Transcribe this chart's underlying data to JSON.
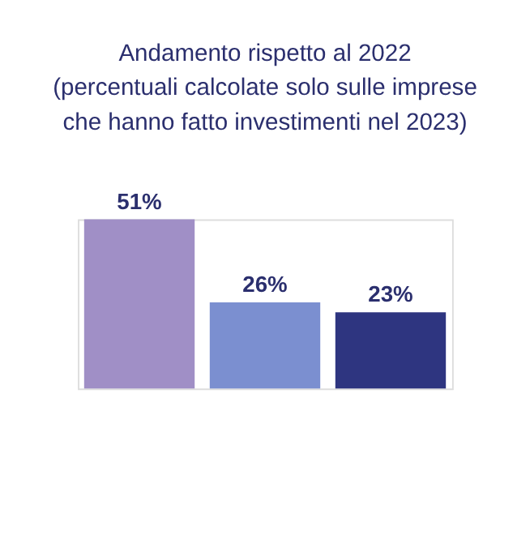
{
  "chart_data": {
    "type": "bar",
    "title": [
      "Andamento rispetto al 2022",
      "(percentuali calcolate solo sulle imprese",
      "che hanno fatto investimenti nel 2023)"
    ],
    "categories": [
      null,
      null,
      null
    ],
    "values": [
      51,
      26,
      23
    ],
    "colors": [
      "#a08fc6",
      "#7b8fd0",
      "#2e3580"
    ],
    "value_labels": [
      "51%",
      "26%",
      "23%"
    ]
  }
}
